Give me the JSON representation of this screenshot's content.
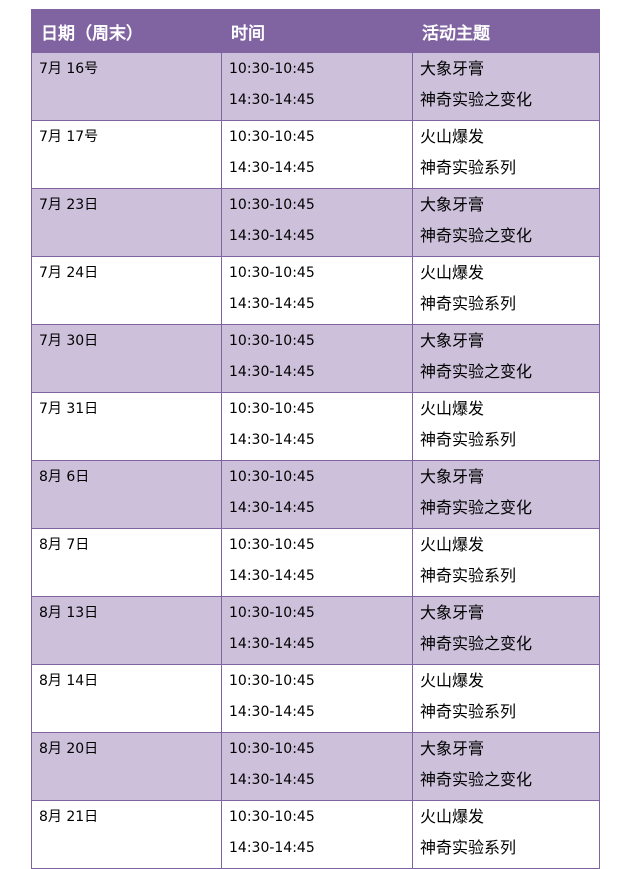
{
  "headers": [
    "日期（周末）",
    "时间",
    "活动主题"
  ],
  "rows": [
    {
      "date": "7月 16号",
      "times": [
        "10:30-10:45",
        "14:30-14:45"
      ],
      "topics": [
        "大象牙膏",
        "神奇实验之变化"
      ]
    },
    {
      "date": "7月 17号",
      "times": [
        "10:30-10:45",
        "14:30-14:45"
      ],
      "topics": [
        "火山爆发",
        "神奇实验系列"
      ]
    },
    {
      "date": "7月 23日",
      "times": [
        "10:30-10:45",
        "14:30-14:45"
      ],
      "topics": [
        "大象牙膏",
        "神奇实验之变化"
      ]
    },
    {
      "date": "7月 24日",
      "times": [
        "10:30-10:45",
        "14:30-14:45"
      ],
      "topics": [
        "火山爆发",
        "神奇实验系列"
      ]
    },
    {
      "date": "7月 30日",
      "times": [
        "10:30-10:45",
        "14:30-14:45"
      ],
      "topics": [
        "大象牙膏",
        "神奇实验之变化"
      ]
    },
    {
      "date": "7月 31日",
      "times": [
        "10:30-10:45",
        "14:30-14:45"
      ],
      "topics": [
        "火山爆发",
        "神奇实验系列"
      ]
    },
    {
      "date": "8月 6日",
      "times": [
        "10:30-10:45",
        "14:30-14:45"
      ],
      "topics": [
        "大象牙膏",
        "神奇实验之变化"
      ]
    },
    {
      "date": "8月 7日",
      "times": [
        "10:30-10:45",
        "14:30-14:45"
      ],
      "topics": [
        "火山爆发",
        "神奇实验系列"
      ]
    },
    {
      "date": "8月 13日",
      "times": [
        "10:30-10:45",
        "14:30-14:45"
      ],
      "topics": [
        "大象牙膏",
        "神奇实验之变化"
      ]
    },
    {
      "date": "8月 14日",
      "times": [
        "10:30-10:45",
        "14:30-14:45"
      ],
      "topics": [
        "火山爆发",
        "神奇实验系列"
      ]
    },
    {
      "date": "8月 20日",
      "times": [
        "10:30-10:45",
        "14:30-14:45"
      ],
      "topics": [
        "大象牙膏",
        "神奇实验之变化"
      ]
    },
    {
      "date": "8月 21日",
      "times": [
        "10:30-10:45",
        "14:30-14:45"
      ],
      "topics": [
        "火山爆发",
        "神奇实验系列"
      ]
    }
  ],
  "colors": {
    "header": "#8064a2",
    "band": "#ccc0da",
    "border": "#8064a2"
  }
}
